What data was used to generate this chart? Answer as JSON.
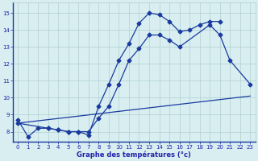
{
  "line1_x": [
    0,
    1,
    2,
    3,
    4,
    5,
    6,
    7,
    8,
    9,
    10,
    11,
    12,
    13,
    14,
    15,
    16,
    17,
    18,
    19,
    20
  ],
  "line1_y": [
    8.7,
    7.7,
    8.2,
    8.2,
    8.1,
    8.0,
    8.0,
    7.8,
    9.5,
    10.8,
    12.2,
    13.2,
    14.4,
    15.0,
    14.9,
    14.5,
    13.9,
    14.0,
    14.3,
    14.5,
    14.5
  ],
  "line2_x": [
    0,
    23
  ],
  "line2_y": [
    8.5,
    10.1
  ],
  "line3_x": [
    0,
    3,
    4,
    5,
    6,
    7,
    8,
    9,
    10,
    11,
    12,
    13,
    14,
    15,
    16,
    19,
    20,
    21,
    23
  ],
  "line3_y": [
    8.5,
    8.2,
    8.1,
    8.0,
    8.0,
    8.0,
    8.8,
    9.5,
    10.8,
    12.2,
    12.9,
    13.7,
    13.7,
    13.4,
    13.0,
    14.3,
    13.7,
    12.2,
    10.8
  ],
  "line_color": "#1a3a9f",
  "bg_color": "#d8eef0",
  "grid_color": "#b0d0d0",
  "tick_color": "#2222aa",
  "xlabel": "Graphe des températures (°c)",
  "xlim": [
    -0.5,
    23.5
  ],
  "ylim": [
    7.4,
    15.6
  ],
  "yticks": [
    8,
    9,
    10,
    11,
    12,
    13,
    14,
    15
  ],
  "xticks": [
    0,
    1,
    2,
    3,
    4,
    5,
    6,
    7,
    8,
    9,
    10,
    11,
    12,
    13,
    14,
    15,
    16,
    17,
    18,
    19,
    20,
    21,
    22,
    23
  ],
  "markersize": 2.5,
  "linewidth": 0.9,
  "tick_fontsize": 5.0,
  "xlabel_fontsize": 6.0
}
